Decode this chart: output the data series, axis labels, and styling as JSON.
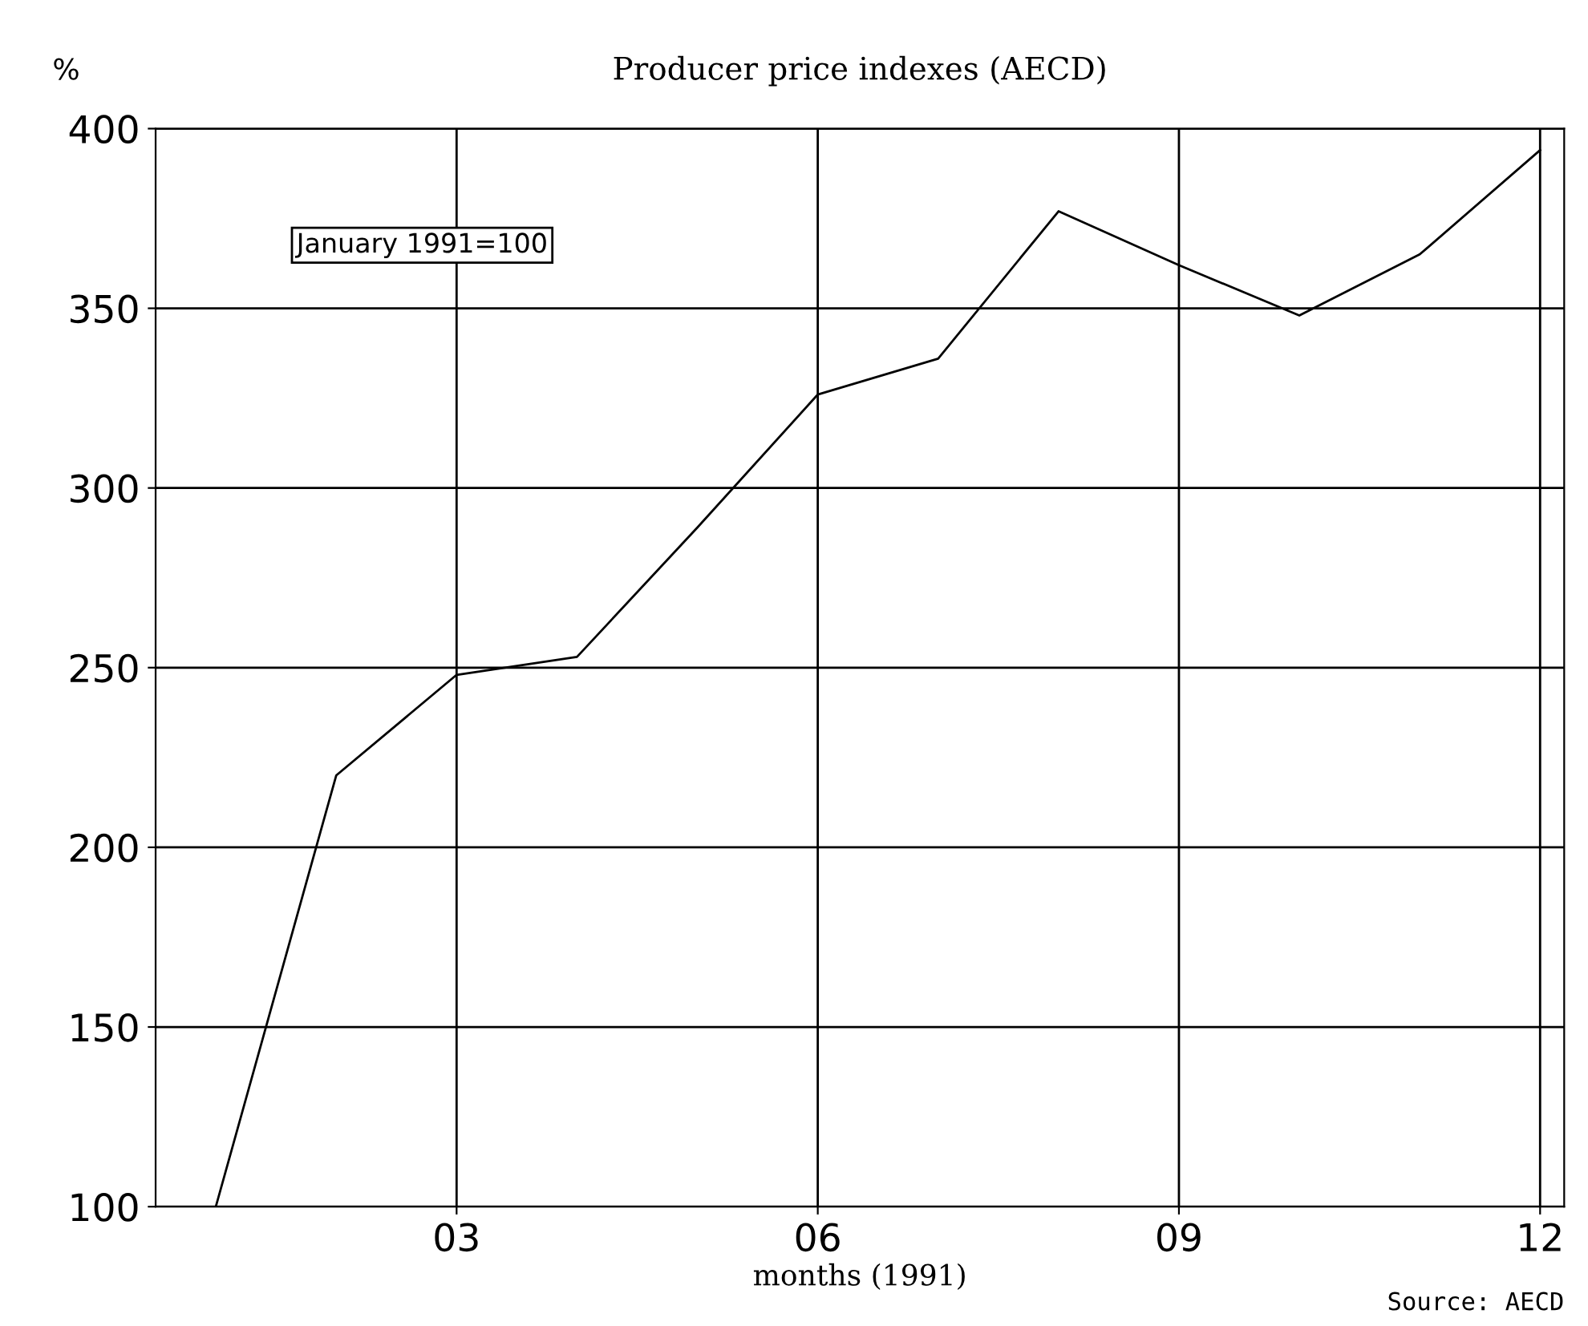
{
  "chart_data": {
    "type": "line",
    "title": "Producer price indexes (AECD)",
    "xlabel": "months (1991)",
    "ylabel": "%",
    "annotations": [
      "January 1991=100",
      "Source: AECD"
    ],
    "x": [
      1,
      2,
      3,
      4,
      5,
      6,
      7,
      8,
      9,
      10,
      11,
      12
    ],
    "series": [
      {
        "color": "#000000",
        "values": [
          100,
          220,
          248,
          253,
          289,
          326,
          336,
          377,
          362,
          348,
          365,
          394
        ]
      }
    ],
    "xlim": [
      0.5,
      12.2
    ],
    "xticks": [
      {
        "value": 3,
        "label": "03"
      },
      {
        "value": 6,
        "label": "06"
      },
      {
        "value": 9,
        "label": "09"
      },
      {
        "value": 12,
        "label": "12"
      }
    ],
    "ylim": [
      100,
      400
    ],
    "yticks": [
      100,
      150,
      200,
      250,
      300,
      350,
      400
    ],
    "grid": true,
    "marker": "none",
    "line_style": "solid"
  }
}
